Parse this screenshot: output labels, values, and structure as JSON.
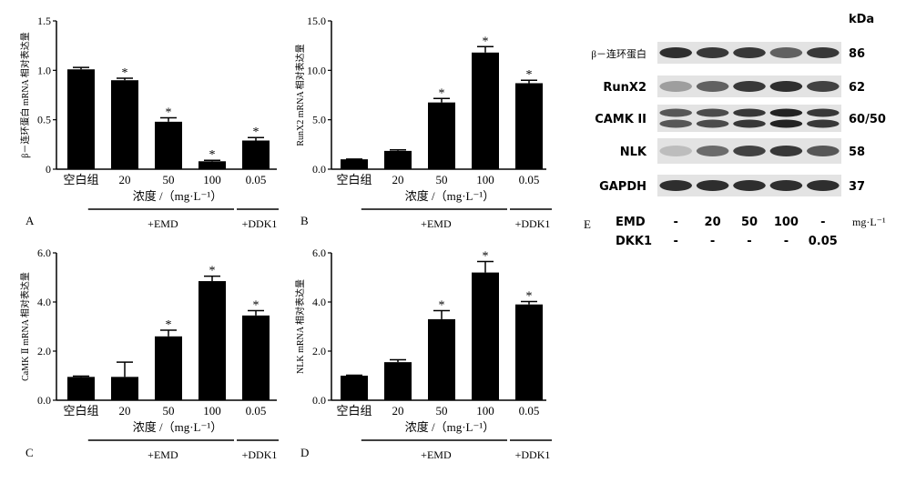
{
  "chart_data": [
    {
      "panel": "A",
      "type": "bar",
      "categories": [
        "空白组",
        "20",
        "50",
        "100",
        "0.05"
      ],
      "values": [
        1.01,
        0.9,
        0.48,
        0.08,
        0.29
      ],
      "errors": [
        0.02,
        0.02,
        0.04,
        0.01,
        0.03
      ],
      "significance": [
        "",
        "*",
        "*",
        "*",
        "*"
      ],
      "ylim": [
        0,
        1.5
      ],
      "yticks": [
        "0",
        "0.5",
        "1.0",
        "1.5"
      ],
      "ylabel": "β－连环蛋白 mRNA 相对表达量",
      "xlabel": "浓度 /（mg·L⁻¹）",
      "groups": [
        "+EMD",
        "+DDK1"
      ]
    },
    {
      "panel": "B",
      "type": "bar",
      "categories": [
        "空白组",
        "20",
        "50",
        "100",
        "0.05"
      ],
      "values": [
        1.0,
        1.85,
        6.75,
        11.8,
        8.7
      ],
      "errors": [
        0.02,
        0.1,
        0.4,
        0.6,
        0.3
      ],
      "significance": [
        "",
        "",
        "*",
        "*",
        "*"
      ],
      "ylim": [
        0,
        15
      ],
      "yticks": [
        "0.0",
        "5.0",
        "10.0",
        "15.0"
      ],
      "ylabel": "RunX2 mRNA 相对表达量",
      "xlabel": "浓度 /（mg·L⁻¹）",
      "groups": [
        "+EMD",
        "+DDK1"
      ]
    },
    {
      "panel": "C",
      "type": "bar",
      "categories": [
        "空白组",
        "20",
        "50",
        "100",
        "0.05"
      ],
      "values": [
        0.95,
        0.95,
        2.6,
        4.85,
        3.45
      ],
      "errors": [
        0.03,
        0.6,
        0.25,
        0.2,
        0.2
      ],
      "significance": [
        "",
        "",
        "*",
        "*",
        "*"
      ],
      "ylim": [
        0,
        6
      ],
      "yticks": [
        "0.0",
        "2.0",
        "4.0",
        "6.0"
      ],
      "ylabel": "CaMK Ⅱ mRNA 相对表达量",
      "xlabel": "浓度 /（mg·L⁻¹）",
      "groups": [
        "+EMD",
        "+DDK1"
      ]
    },
    {
      "panel": "D",
      "type": "bar",
      "categories": [
        "空白组",
        "20",
        "50",
        "100",
        "0.05"
      ],
      "values": [
        1.0,
        1.55,
        3.3,
        5.2,
        3.9
      ],
      "errors": [
        0.02,
        0.1,
        0.35,
        0.45,
        0.12
      ],
      "significance": [
        "",
        "",
        "*",
        "*",
        "*"
      ],
      "ylim": [
        0,
        6
      ],
      "yticks": [
        "0.0",
        "2.0",
        "4.0",
        "6.0"
      ],
      "ylabel": "NLK mRNA 相对表达量",
      "xlabel": "浓度 /（mg·L⁻¹）",
      "groups": [
        "+EMD",
        "+DDK1"
      ]
    }
  ],
  "blot": {
    "panel": "E",
    "unit_header": "kDa",
    "rows": [
      {
        "label": "β－连环蛋白",
        "kda": "86",
        "bands": [
          0.9,
          0.85,
          0.85,
          0.65,
          0.85
        ],
        "double": false
      },
      {
        "label": "RunX2",
        "kda": "62",
        "bands": [
          0.35,
          0.65,
          0.85,
          0.9,
          0.8
        ],
        "double": false
      },
      {
        "label": "CAMK II",
        "kda": "60/50",
        "bands": [
          0.7,
          0.75,
          0.85,
          0.95,
          0.85
        ],
        "double": true
      },
      {
        "label": "NLK",
        "kda": "58",
        "bands": [
          0.2,
          0.6,
          0.8,
          0.85,
          0.7
        ],
        "double": false
      },
      {
        "label": "GAPDH",
        "kda": "37",
        "bands": [
          0.9,
          0.9,
          0.9,
          0.9,
          0.9
        ],
        "double": false
      }
    ],
    "emd_label": "EMD",
    "emd_values": [
      "-",
      "20",
      "50",
      "100",
      "-"
    ],
    "emd_unit": "mg·L⁻¹",
    "dkk_label": "DKK1",
    "dkk_values": [
      "-",
      "-",
      "-",
      "-",
      "0.05"
    ]
  }
}
